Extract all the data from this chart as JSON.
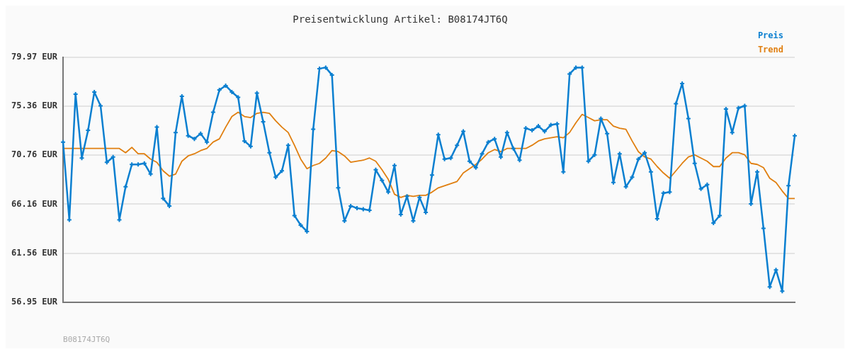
{
  "chart_data": {
    "type": "line",
    "title": "Preisentwicklung Artikel: B08174JT6Q",
    "categories": [
      null,
      null,
      null,
      null,
      null,
      null,
      null,
      null,
      null,
      null,
      null,
      null,
      null,
      null,
      null,
      null,
      null,
      null,
      null,
      null,
      null,
      null,
      null,
      null,
      null,
      null,
      null,
      null,
      null,
      null,
      null,
      null,
      null,
      null,
      null,
      null,
      null,
      null,
      null,
      null,
      null,
      null,
      null,
      null,
      null,
      null,
      null,
      null,
      null,
      null,
      null,
      null,
      null,
      null,
      null,
      null,
      null,
      null,
      null,
      null,
      null,
      null,
      null,
      null,
      null,
      null,
      null,
      null,
      null,
      null,
      null,
      null,
      null,
      null,
      null,
      null,
      null,
      null,
      null,
      null,
      null,
      null,
      null,
      null,
      null,
      null,
      null,
      null,
      null,
      null,
      null,
      null,
      null,
      null,
      null,
      null,
      null,
      null,
      null,
      null,
      null,
      null,
      null,
      null,
      null,
      null,
      null,
      null,
      null,
      null,
      null,
      null,
      null,
      null,
      null,
      null,
      null,
      null
    ],
    "series": [
      {
        "name": "Preis",
        "color": "#0a7fd0",
        "marker": "cross",
        "values": [
          72.0,
          64.7,
          76.5,
          70.5,
          73.1,
          76.7,
          75.4,
          70.1,
          70.6,
          64.7,
          67.8,
          69.9,
          69.9,
          70.0,
          69.0,
          73.4,
          66.7,
          66.0,
          72.9,
          76.3,
          72.6,
          72.3,
          72.8,
          72.0,
          74.8,
          76.9,
          77.3,
          76.7,
          76.2,
          72.1,
          71.6,
          76.6,
          73.9,
          71.0,
          68.7,
          69.3,
          71.7,
          65.1,
          64.2,
          63.6,
          73.2,
          78.9,
          79.0,
          78.3,
          67.7,
          64.6,
          66.0,
          65.8,
          65.7,
          65.6,
          69.4,
          68.4,
          67.3,
          69.8,
          65.2,
          66.9,
          64.6,
          66.8,
          65.4,
          68.9,
          72.7,
          70.4,
          70.5,
          71.7,
          73.0,
          70.2,
          69.6,
          70.9,
          72.0,
          72.3,
          70.6,
          72.9,
          71.4,
          70.3,
          73.3,
          73.1,
          73.5,
          73.0,
          73.6,
          73.7,
          69.2,
          78.4,
          79.0,
          79.0,
          70.2,
          70.8,
          74.2,
          72.8,
          68.2,
          70.9,
          67.8,
          68.7,
          70.4,
          71.0,
          69.2,
          64.8,
          67.2,
          67.3,
          75.6,
          77.5,
          74.2,
          70.0,
          67.6,
          68.0,
          64.4,
          65.1,
          75.1,
          72.9,
          75.2,
          75.4,
          66.2,
          69.2,
          63.9,
          58.4,
          60.0,
          58.0,
          67.9,
          72.6
        ]
      },
      {
        "name": "Trend",
        "color": "#e07f10",
        "marker": "none",
        "values": [
          71.4,
          71.4,
          71.4,
          71.4,
          71.4,
          71.4,
          71.4,
          71.4,
          71.4,
          71.4,
          71.0,
          71.5,
          70.9,
          70.9,
          70.4,
          70.1,
          69.3,
          68.8,
          69.0,
          70.2,
          70.7,
          70.9,
          71.2,
          71.4,
          72.0,
          72.3,
          73.4,
          74.4,
          74.8,
          74.4,
          74.3,
          74.7,
          74.8,
          74.7,
          74.0,
          73.4,
          72.9,
          71.7,
          70.4,
          69.5,
          69.8,
          70.0,
          70.5,
          71.2,
          71.1,
          70.7,
          70.1,
          70.2,
          70.3,
          70.5,
          70.2,
          69.4,
          68.5,
          67.1,
          66.8,
          67.0,
          66.9,
          67.0,
          67.0,
          67.3,
          67.7,
          67.9,
          68.1,
          68.3,
          69.1,
          69.5,
          69.9,
          70.4,
          71.0,
          71.3,
          71.1,
          71.4,
          71.4,
          71.4,
          71.4,
          71.7,
          72.1,
          72.3,
          72.4,
          72.5,
          72.4,
          72.9,
          73.8,
          74.6,
          74.3,
          74.0,
          74.1,
          74.1,
          73.5,
          73.3,
          73.2,
          72.1,
          71.1,
          70.6,
          70.4,
          69.7,
          69.1,
          68.6,
          69.3,
          70.0,
          70.6,
          70.8,
          70.5,
          70.2,
          69.7,
          69.7,
          70.5,
          71.0,
          71.0,
          70.8,
          70.0,
          69.9,
          69.6,
          68.6,
          68.2,
          67.4,
          66.7,
          66.7
        ]
      }
    ],
    "ylim": [
      56.95,
      79.97
    ],
    "yticks": [
      {
        "value": 56.95,
        "label": "56.95 EUR"
      },
      {
        "value": 61.56,
        "label": "61.56 EUR"
      },
      {
        "value": 66.16,
        "label": "66.16 EUR"
      },
      {
        "value": 70.76,
        "label": "70.76 EUR"
      },
      {
        "value": 75.36,
        "label": "75.36 EUR"
      },
      {
        "value": 79.97,
        "label": "79.97 EUR"
      }
    ],
    "grid": "y",
    "legend": "top right",
    "annotations": [
      "B08174JT6Q"
    ]
  }
}
